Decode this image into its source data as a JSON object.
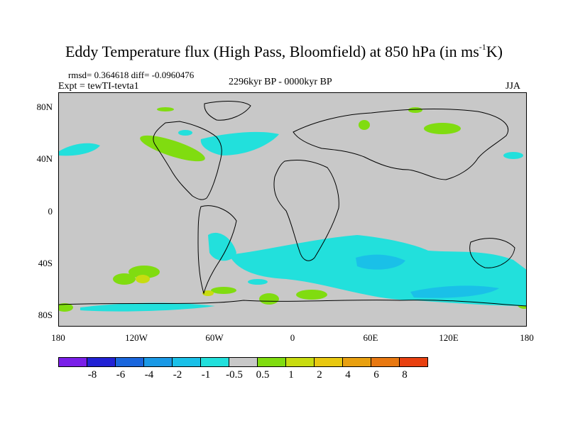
{
  "title": {
    "main": "Eddy Temperature flux (High Pass, Bloomfield) at 850 hPa (in ms",
    "sup": "-1",
    "end": "K)"
  },
  "stats": "rmsd= 0.364618 diff= -0.0960476",
  "expt": "Expt = tewTI-tevta1",
  "period": "2296kyr BP - 0000kyr BP",
  "season": "JJA",
  "map": {
    "y_ticks": [
      "80N",
      "40N",
      "0",
      "40S",
      "80S"
    ],
    "x_ticks": [
      "180",
      "120W",
      "60W",
      "0",
      "60E",
      "120E",
      "180"
    ],
    "lat_range": [
      -90,
      90
    ],
    "lon_range": [
      -180,
      180
    ],
    "background_color": "#c8c8c8"
  },
  "colorbar": {
    "labels": [
      "-8",
      "-6",
      "-4",
      "-2",
      "-1",
      "-0.5",
      "0.5",
      "1",
      "2",
      "4",
      "6",
      "8"
    ],
    "colors": [
      "#7a1fe8",
      "#2222d4",
      "#1a66dd",
      "#1a99e6",
      "#1ac0e8",
      "#22e0dc",
      "#c8c8c8",
      "#80dc10",
      "#c8dc10",
      "#e8c810",
      "#e8a010",
      "#e87810",
      "#e84010"
    ]
  }
}
